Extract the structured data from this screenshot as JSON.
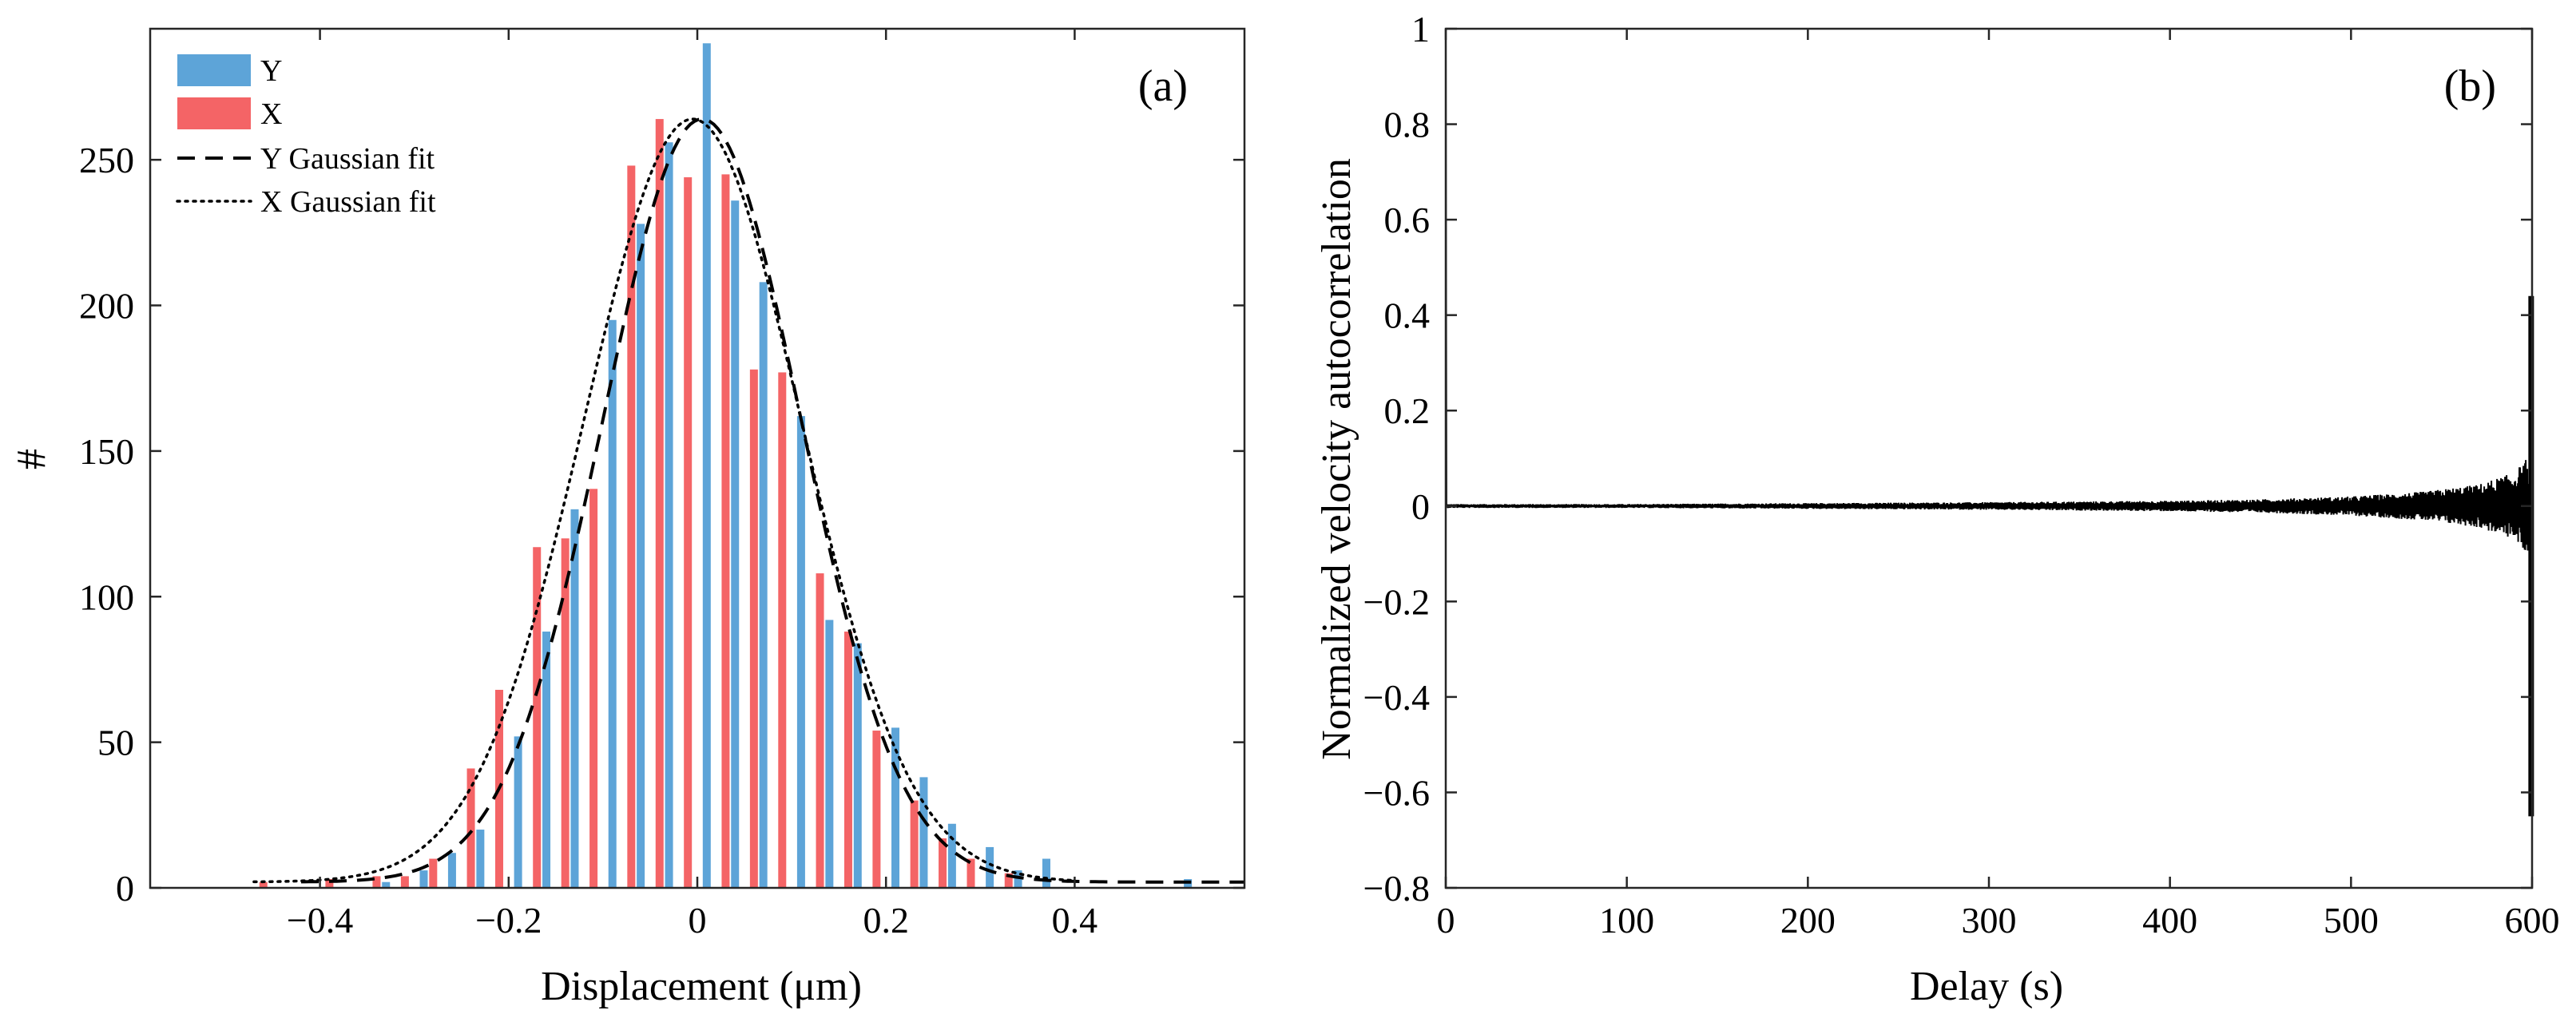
{
  "chart_data": [
    {
      "type": "bar",
      "panel_label": "(a)",
      "xlabel": "Displacement (μm)",
      "ylabel": "#",
      "xlim": [
        -0.58,
        0.58
      ],
      "ylim": [
        0,
        295
      ],
      "xticks": [
        -0.4,
        -0.2,
        0,
        0.2,
        0.4
      ],
      "xtick_labels": [
        "−0.4",
        "−0.2",
        "0",
        "0.2",
        "0.4"
      ],
      "yticks": [
        0,
        50,
        100,
        150,
        200,
        250
      ],
      "ytick_labels": [
        "0",
        "50",
        "100",
        "150",
        "200",
        "250"
      ],
      "legend_position": "top-left",
      "series": [
        {
          "name": "Y",
          "kind": "bar",
          "color": "#5da4d8",
          "x": [
            -0.33,
            -0.29,
            -0.26,
            -0.23,
            -0.19,
            -0.16,
            -0.13,
            -0.09,
            -0.06,
            -0.03,
            0.01,
            0.04,
            0.07,
            0.11,
            0.14,
            0.17,
            0.21,
            0.24,
            0.27,
            0.31,
            0.34,
            0.37,
            0.52
          ],
          "values": [
            2,
            6,
            12,
            20,
            52,
            88,
            130,
            195,
            228,
            256,
            290,
            236,
            208,
            162,
            92,
            84,
            55,
            38,
            22,
            14,
            6,
            10,
            3
          ]
        },
        {
          "name": "X",
          "kind": "bar",
          "color": "#f46466",
          "x": [
            -0.46,
            -0.39,
            -0.34,
            -0.31,
            -0.28,
            -0.24,
            -0.21,
            -0.17,
            -0.14,
            -0.11,
            -0.07,
            -0.04,
            -0.01,
            0.03,
            0.06,
            0.09,
            0.13,
            0.16,
            0.19,
            0.23,
            0.26,
            0.29,
            0.33
          ],
          "values": [
            2,
            3,
            4,
            4,
            10,
            41,
            68,
            117,
            120,
            137,
            248,
            264,
            244,
            245,
            178,
            177,
            108,
            88,
            54,
            30,
            17,
            10,
            5
          ]
        },
        {
          "name": "Y Gaussian fit",
          "kind": "line",
          "style": "dashed",
          "mean": 0.005,
          "sigma": 0.105,
          "amplitude": 262,
          "offset": 2,
          "x_range": [
            -0.42,
            0.58
          ]
        },
        {
          "name": "X Gaussian fit",
          "kind": "line",
          "style": "dotted",
          "mean": -0.005,
          "sigma": 0.115,
          "amplitude": 262,
          "offset": 2,
          "x_range": [
            -0.47,
            0.4
          ]
        }
      ]
    },
    {
      "type": "line",
      "panel_label": "(b)",
      "xlabel": "Delay (s)",
      "ylabel": "Normalized velocity autocorrelation",
      "xlim": [
        0,
        600
      ],
      "ylim": [
        -0.8,
        1
      ],
      "xticks": [
        0,
        100,
        200,
        300,
        400,
        500,
        600
      ],
      "xtick_labels": [
        "0",
        "100",
        "200",
        "300",
        "400",
        "500",
        "600"
      ],
      "yticks": [
        -0.8,
        -0.6,
        -0.4,
        -0.2,
        0,
        0.2,
        0.4,
        0.6,
        0.8,
        1
      ],
      "ytick_labels": [
        "−0.8",
        "−0.6",
        "−0.4",
        "−0.2",
        "0",
        "0.2",
        "0.4",
        "0.6",
        "0.8",
        "1"
      ],
      "series": [
        {
          "name": "autocorrelation",
          "color": "#000000",
          "initial_value": 1,
          "baseline": 0,
          "noise_envelope": {
            "delay": [
              0,
              100,
              200,
              300,
              400,
              450,
              500,
              540,
              570,
              590,
              597
            ],
            "amplitude": [
              0.004,
              0.004,
              0.006,
              0.008,
              0.011,
              0.014,
              0.02,
              0.03,
              0.045,
              0.07,
              0.1
            ]
          },
          "end_spike": {
            "delay": 599.5,
            "max": 0.44,
            "min": -0.65
          }
        }
      ]
    }
  ]
}
